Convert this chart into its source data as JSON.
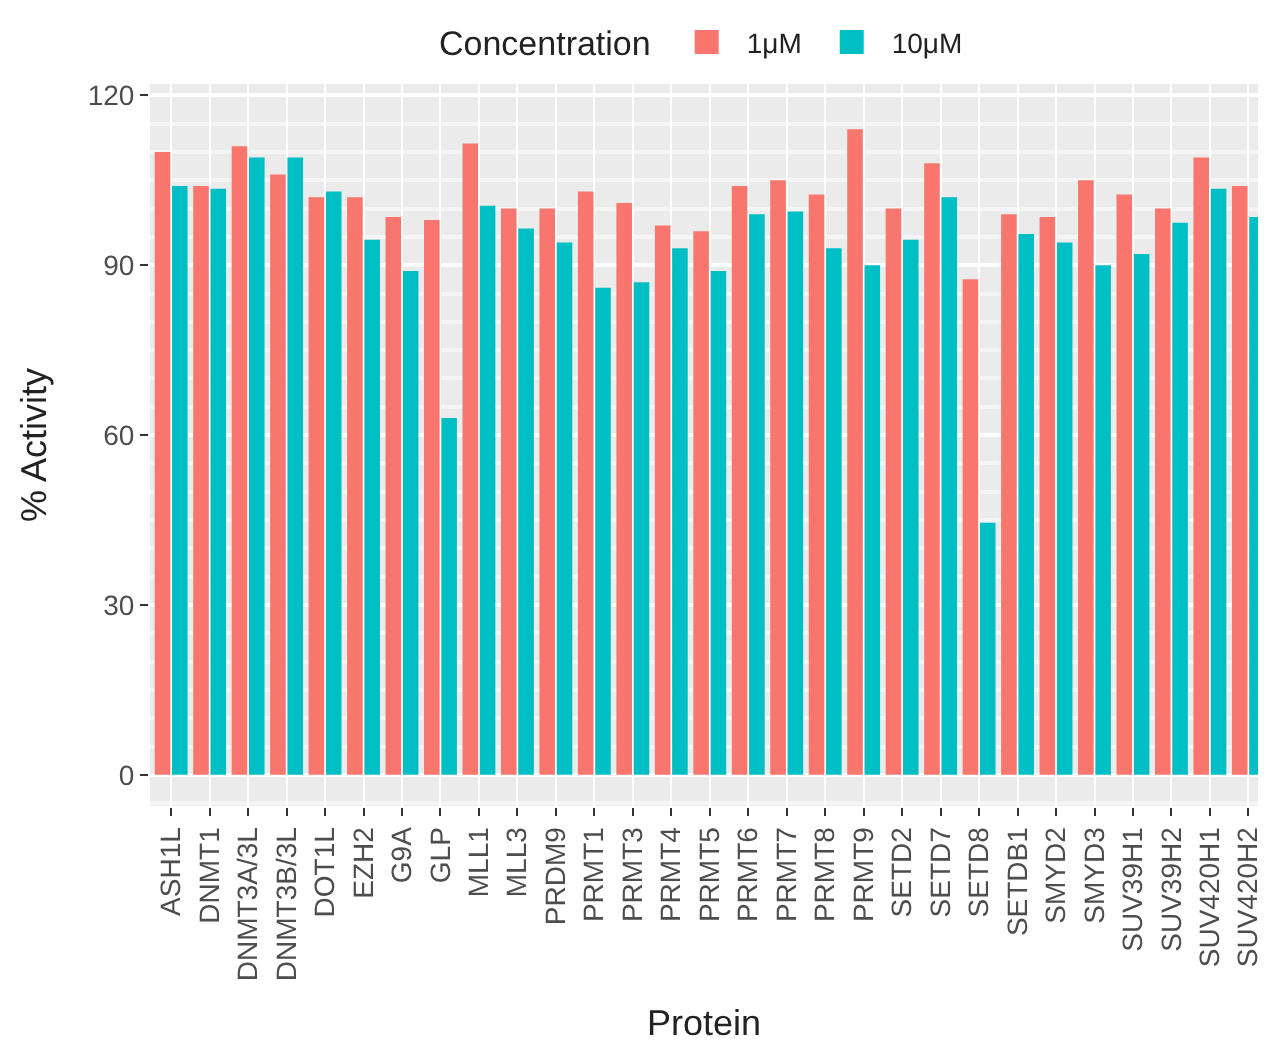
{
  "chart_data": {
    "type": "bar",
    "xlabel": "Protein",
    "ylabel": "% Activity",
    "legend_title": "Concentration",
    "categories": [
      "ASH1L",
      "DNMT1",
      "DNMT3A/3L",
      "DNMT3B/3L",
      "DOT1L",
      "EZH2",
      "G9A",
      "GLP",
      "MLL1",
      "MLL3",
      "PRDM9",
      "PRMT1",
      "PRMT3",
      "PRMT4",
      "PRMT5",
      "PRMT6",
      "PRMT7",
      "PRMT8",
      "PRMT9",
      "SETD2",
      "SETD7",
      "SETD8",
      "SETDB1",
      "SMYD2",
      "SMYD3",
      "SUV39H1",
      "SUV39H2",
      "SUV420H1",
      "SUV420H2"
    ],
    "series": [
      {
        "name": "1μM",
        "color": "#f8766d",
        "values": [
          110,
          104,
          111,
          106,
          102,
          102,
          98.5,
          98,
          111.5,
          100,
          100,
          103,
          101,
          97,
          96,
          104,
          105,
          102.5,
          114,
          100,
          108,
          87.5,
          99,
          98.5,
          105,
          102.5,
          100,
          109,
          104
        ]
      },
      {
        "name": "10μM",
        "color": "#00bfc4",
        "values": [
          104,
          103.5,
          109,
          109,
          103,
          94.5,
          89,
          63,
          100.5,
          96.5,
          94,
          86,
          87,
          93,
          89,
          99,
          99.5,
          93,
          90,
          94.5,
          102,
          44.5,
          95.5,
          94,
          90,
          92,
          97.5,
          103.5,
          98.5
        ]
      }
    ],
    "ylim": [
      -5.5,
      122
    ],
    "yticks": [
      0,
      30,
      60,
      90,
      120
    ],
    "grid": true,
    "legend": "top"
  }
}
